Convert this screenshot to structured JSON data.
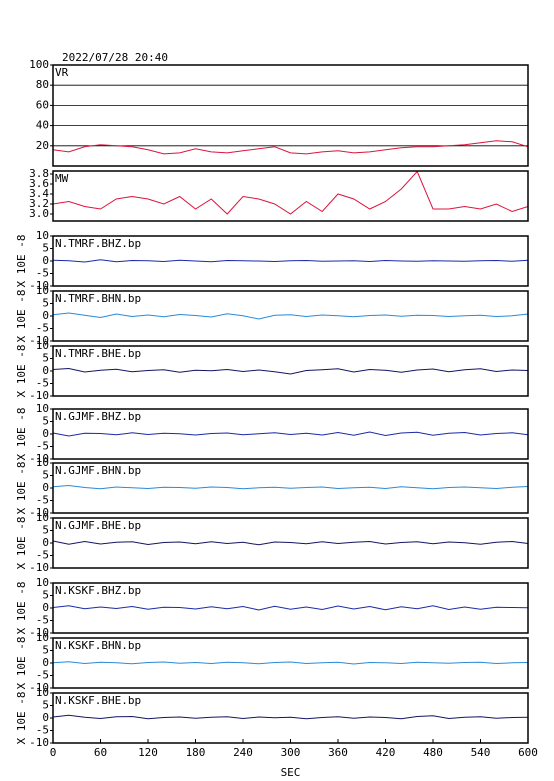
{
  "chart_data": [
    {
      "type": "line",
      "title": "2022/07/28 20:40",
      "label": "VR",
      "color": "#dc143c",
      "grid": true,
      "x": [
        0,
        20,
        40,
        60,
        80,
        100,
        120,
        140,
        160,
        180,
        200,
        220,
        240,
        260,
        280,
        300,
        320,
        340,
        360,
        380,
        400,
        420,
        440,
        460,
        480,
        500,
        520,
        540,
        560,
        580,
        600
      ],
      "values": [
        16,
        14,
        19,
        21,
        20,
        19,
        16,
        12,
        13,
        17,
        14,
        13,
        15,
        17,
        19,
        13,
        12,
        14,
        15,
        13,
        14,
        16,
        18,
        19,
        19,
        20,
        21,
        23,
        25,
        24,
        19
      ],
      "ylim": [
        0,
        100
      ],
      "yticks": [
        20,
        40,
        60,
        80,
        100
      ]
    },
    {
      "type": "line",
      "label": "MW",
      "color": "#dc143c",
      "grid": false,
      "x": [
        0,
        20,
        40,
        60,
        80,
        100,
        120,
        140,
        160,
        180,
        200,
        220,
        240,
        260,
        280,
        300,
        320,
        340,
        360,
        380,
        400,
        420,
        440,
        460,
        480,
        500,
        520,
        540,
        560,
        580,
        600
      ],
      "values": [
        3.2,
        3.25,
        3.15,
        3.1,
        3.3,
        3.35,
        3.3,
        3.2,
        3.35,
        3.1,
        3.3,
        3.0,
        3.35,
        3.3,
        3.2,
        3.0,
        3.25,
        3.05,
        3.4,
        3.3,
        3.1,
        3.25,
        3.5,
        3.85,
        3.1,
        3.1,
        3.15,
        3.1,
        3.2,
        3.05,
        3.15
      ],
      "ylim": [
        2.86,
        3.86
      ],
      "yticks": [
        {
          "value": 3,
          "label": "3.0"
        },
        3.2,
        3.4,
        3.6,
        3.8
      ]
    },
    {
      "type": "line",
      "label": "N.TMRF.BHZ.bp",
      "ylabel": "X 10E -8",
      "color": "#1a2aa8",
      "grid": false,
      "x": [
        0,
        20,
        40,
        60,
        80,
        100,
        120,
        140,
        160,
        180,
        200,
        220,
        240,
        260,
        280,
        300,
        320,
        340,
        360,
        380,
        400,
        420,
        440,
        460,
        480,
        500,
        520,
        540,
        560,
        580,
        600
      ],
      "values": [
        0.3,
        0.1,
        -0.4,
        0.5,
        -0.3,
        0.2,
        0.1,
        -0.2,
        0.3,
        0,
        -0.3,
        0.2,
        0.1,
        0,
        -0.2,
        0.1,
        0.2,
        -0.1,
        0,
        0.1,
        -0.2,
        0.2,
        0,
        -0.1,
        0.1,
        0,
        -0.1,
        0.1,
        0.2,
        -0.1,
        0.3
      ],
      "ylim": [
        -10,
        10
      ],
      "yticks": [
        -10,
        -5,
        0,
        5,
        10
      ]
    },
    {
      "type": "line",
      "label": "N.TMRF.BHN.bp",
      "ylabel": "X 10E -8",
      "color": "#2a8ad8",
      "grid": false,
      "x": [
        0,
        20,
        40,
        60,
        80,
        100,
        120,
        140,
        160,
        180,
        200,
        220,
        240,
        260,
        280,
        300,
        320,
        340,
        360,
        380,
        400,
        420,
        440,
        460,
        480,
        500,
        520,
        540,
        560,
        580,
        600
      ],
      "values": [
        0.5,
        1.2,
        0.3,
        -0.6,
        0.8,
        -0.2,
        0.4,
        -0.3,
        0.6,
        0.2,
        -0.4,
        0.9,
        0.1,
        -1.2,
        0.3,
        0.5,
        -0.2,
        0.4,
        0.1,
        -0.3,
        0.2,
        0.4,
        -0.1,
        0.3,
        0.2,
        -0.2,
        0.1,
        0.3,
        -0.2,
        0.1,
        0.8
      ],
      "ylim": [
        -10,
        10
      ],
      "yticks": [
        -10,
        -5,
        0,
        5,
        10
      ]
    },
    {
      "type": "line",
      "label": "N.TMRF.BHE.bp",
      "ylabel": "X 10E -8",
      "color": "#141464",
      "grid": false,
      "x": [
        0,
        20,
        40,
        60,
        80,
        100,
        120,
        140,
        160,
        180,
        200,
        220,
        240,
        260,
        280,
        300,
        320,
        340,
        360,
        380,
        400,
        420,
        440,
        460,
        480,
        500,
        520,
        540,
        560,
        580,
        600
      ],
      "values": [
        0.6,
        1.0,
        -0.4,
        0.3,
        0.7,
        -0.3,
        0.2,
        0.5,
        -0.5,
        0.3,
        0.1,
        0.6,
        -0.2,
        0.4,
        -0.3,
        -1.2,
        0.2,
        0.5,
        0.9,
        -0.4,
        0.6,
        0.3,
        -0.5,
        0.4,
        0.8,
        -0.3,
        0.5,
        0.9,
        -0.2,
        0.4,
        0.2
      ],
      "ylim": [
        -10,
        10
      ],
      "yticks": [
        -10,
        -5,
        0,
        5,
        10
      ]
    },
    {
      "type": "line",
      "label": "N.GJMF.BHZ.bp",
      "ylabel": "X 10E -8",
      "color": "#1a2aa8",
      "grid": false,
      "x": [
        0,
        20,
        40,
        60,
        80,
        100,
        120,
        140,
        160,
        180,
        200,
        220,
        240,
        260,
        280,
        300,
        320,
        340,
        360,
        380,
        400,
        420,
        440,
        460,
        480,
        500,
        520,
        540,
        560,
        580,
        600
      ],
      "values": [
        0.4,
        -0.8,
        0.3,
        0.2,
        -0.3,
        0.5,
        -0.2,
        0.3,
        0.1,
        -0.4,
        0.2,
        0.4,
        -0.3,
        0.1,
        0.5,
        -0.2,
        0.3,
        -0.4,
        0.6,
        -0.5,
        0.8,
        -0.6,
        0.4,
        0.7,
        -0.5,
        0.3,
        0.6,
        -0.4,
        0.2,
        0.5,
        -0.3
      ],
      "ylim": [
        -10,
        10
      ],
      "yticks": [
        -10,
        -5,
        0,
        5,
        10
      ]
    },
    {
      "type": "line",
      "label": "N.GJMF.BHN.bp",
      "ylabel": "X 10E -8",
      "color": "#2a8ad8",
      "grid": false,
      "x": [
        0,
        20,
        40,
        60,
        80,
        100,
        120,
        140,
        160,
        180,
        200,
        220,
        240,
        260,
        280,
        300,
        320,
        340,
        360,
        380,
        400,
        420,
        440,
        460,
        480,
        500,
        520,
        540,
        560,
        580,
        600
      ],
      "values": [
        0.5,
        1.0,
        0.2,
        -0.3,
        0.4,
        0.1,
        -0.2,
        0.3,
        0.2,
        -0.1,
        0.4,
        0.2,
        -0.3,
        0.1,
        0.3,
        -0.1,
        0.2,
        0.4,
        -0.2,
        0.1,
        0.3,
        -0.2,
        0.5,
        0.1,
        -0.3,
        0.2,
        0.4,
        0.1,
        -0.2,
        0.3,
        0.6
      ],
      "ylim": [
        -10,
        10
      ],
      "yticks": [
        -10,
        -5,
        0,
        5,
        10
      ]
    },
    {
      "type": "line",
      "label": "N.GJMF.BHE.bp",
      "ylabel": "X 10E -8",
      "color": "#141464",
      "grid": false,
      "x": [
        0,
        20,
        40,
        60,
        80,
        100,
        120,
        140,
        160,
        180,
        200,
        220,
        240,
        260,
        280,
        300,
        320,
        340,
        360,
        380,
        400,
        420,
        440,
        460,
        480,
        500,
        520,
        540,
        560,
        580,
        600
      ],
      "values": [
        0.8,
        -0.5,
        0.6,
        -0.4,
        0.3,
        0.5,
        -0.6,
        0.2,
        0.4,
        -0.3,
        0.5,
        -0.2,
        0.3,
        -0.7,
        0.4,
        0.2,
        -0.3,
        0.5,
        -0.2,
        0.3,
        0.6,
        -0.4,
        0.2,
        0.5,
        -0.3,
        0.4,
        0.1,
        -0.5,
        0.3,
        0.6,
        -0.2
      ],
      "ylim": [
        -10,
        10
      ],
      "yticks": [
        -10,
        -5,
        0,
        5,
        10
      ]
    },
    {
      "type": "line",
      "label": "N.KSKF.BHZ.bp",
      "ylabel": "X 10E -8",
      "color": "#1a2aa8",
      "grid": false,
      "x": [
        0,
        20,
        40,
        60,
        80,
        100,
        120,
        140,
        160,
        180,
        200,
        220,
        240,
        260,
        280,
        300,
        320,
        340,
        360,
        380,
        400,
        420,
        440,
        460,
        480,
        500,
        520,
        540,
        560,
        580,
        600
      ],
      "values": [
        0.2,
        0.9,
        -0.3,
        0.4,
        -0.2,
        0.6,
        -0.5,
        0.3,
        0.2,
        -0.4,
        0.5,
        -0.3,
        0.6,
        -0.8,
        0.7,
        -0.5,
        0.4,
        -0.6,
        0.8,
        -0.4,
        0.6,
        -0.7,
        0.5,
        -0.3,
        0.9,
        -0.6,
        0.4,
        -0.5,
        0.3,
        0.2,
        0.1
      ],
      "ylim": [
        -10,
        10
      ],
      "yticks": [
        -10,
        -5,
        0,
        5,
        10
      ]
    },
    {
      "type": "line",
      "label": "N.KSKF.BHN.bp",
      "ylabel": "X 10E -8",
      "color": "#2a8ad8",
      "grid": false,
      "x": [
        0,
        20,
        40,
        60,
        80,
        100,
        120,
        140,
        160,
        180,
        200,
        220,
        240,
        260,
        280,
        300,
        320,
        340,
        360,
        380,
        400,
        420,
        440,
        460,
        480,
        500,
        520,
        540,
        560,
        580,
        600
      ],
      "values": [
        0.1,
        0.5,
        -0.2,
        0.3,
        0.1,
        -0.3,
        0.2,
        0.4,
        -0.1,
        0.2,
        -0.2,
        0.3,
        0.1,
        -0.3,
        0.2,
        0.4,
        -0.2,
        0.1,
        0.3,
        -0.4,
        0.2,
        0.1,
        -0.2,
        0.3,
        0.1,
        -0.1,
        0.2,
        0.3,
        -0.2,
        0.1,
        0.2
      ],
      "ylim": [
        -10,
        10
      ],
      "yticks": [
        -10,
        -5,
        0,
        5,
        10
      ]
    },
    {
      "type": "line",
      "label": "N.KSKF.BHE.bp",
      "ylabel": "X 10E -8",
      "color": "#141464",
      "grid": false,
      "x": [
        0,
        20,
        40,
        60,
        80,
        100,
        120,
        140,
        160,
        180,
        200,
        220,
        240,
        260,
        280,
        300,
        320,
        340,
        360,
        380,
        400,
        420,
        440,
        460,
        480,
        500,
        520,
        540,
        560,
        580,
        600
      ],
      "values": [
        0.4,
        1.1,
        0.3,
        -0.2,
        0.5,
        0.6,
        -0.3,
        0.2,
        0.4,
        -0.1,
        0.3,
        0.5,
        -0.2,
        0.4,
        0.1,
        0.3,
        -0.3,
        0.2,
        0.5,
        -0.1,
        0.4,
        0.2,
        -0.3,
        0.6,
        0.9,
        -0.2,
        0.3,
        0.5,
        -0.1,
        0.2,
        0.3
      ],
      "ylim": [
        -10,
        10
      ],
      "yticks": [
        -10,
        -5,
        0,
        5,
        10
      ],
      "xlim": [
        0,
        600
      ],
      "xticks": [
        0,
        60,
        120,
        180,
        240,
        300,
        360,
        420,
        480,
        540,
        600
      ],
      "xlabel": "SEC"
    }
  ]
}
